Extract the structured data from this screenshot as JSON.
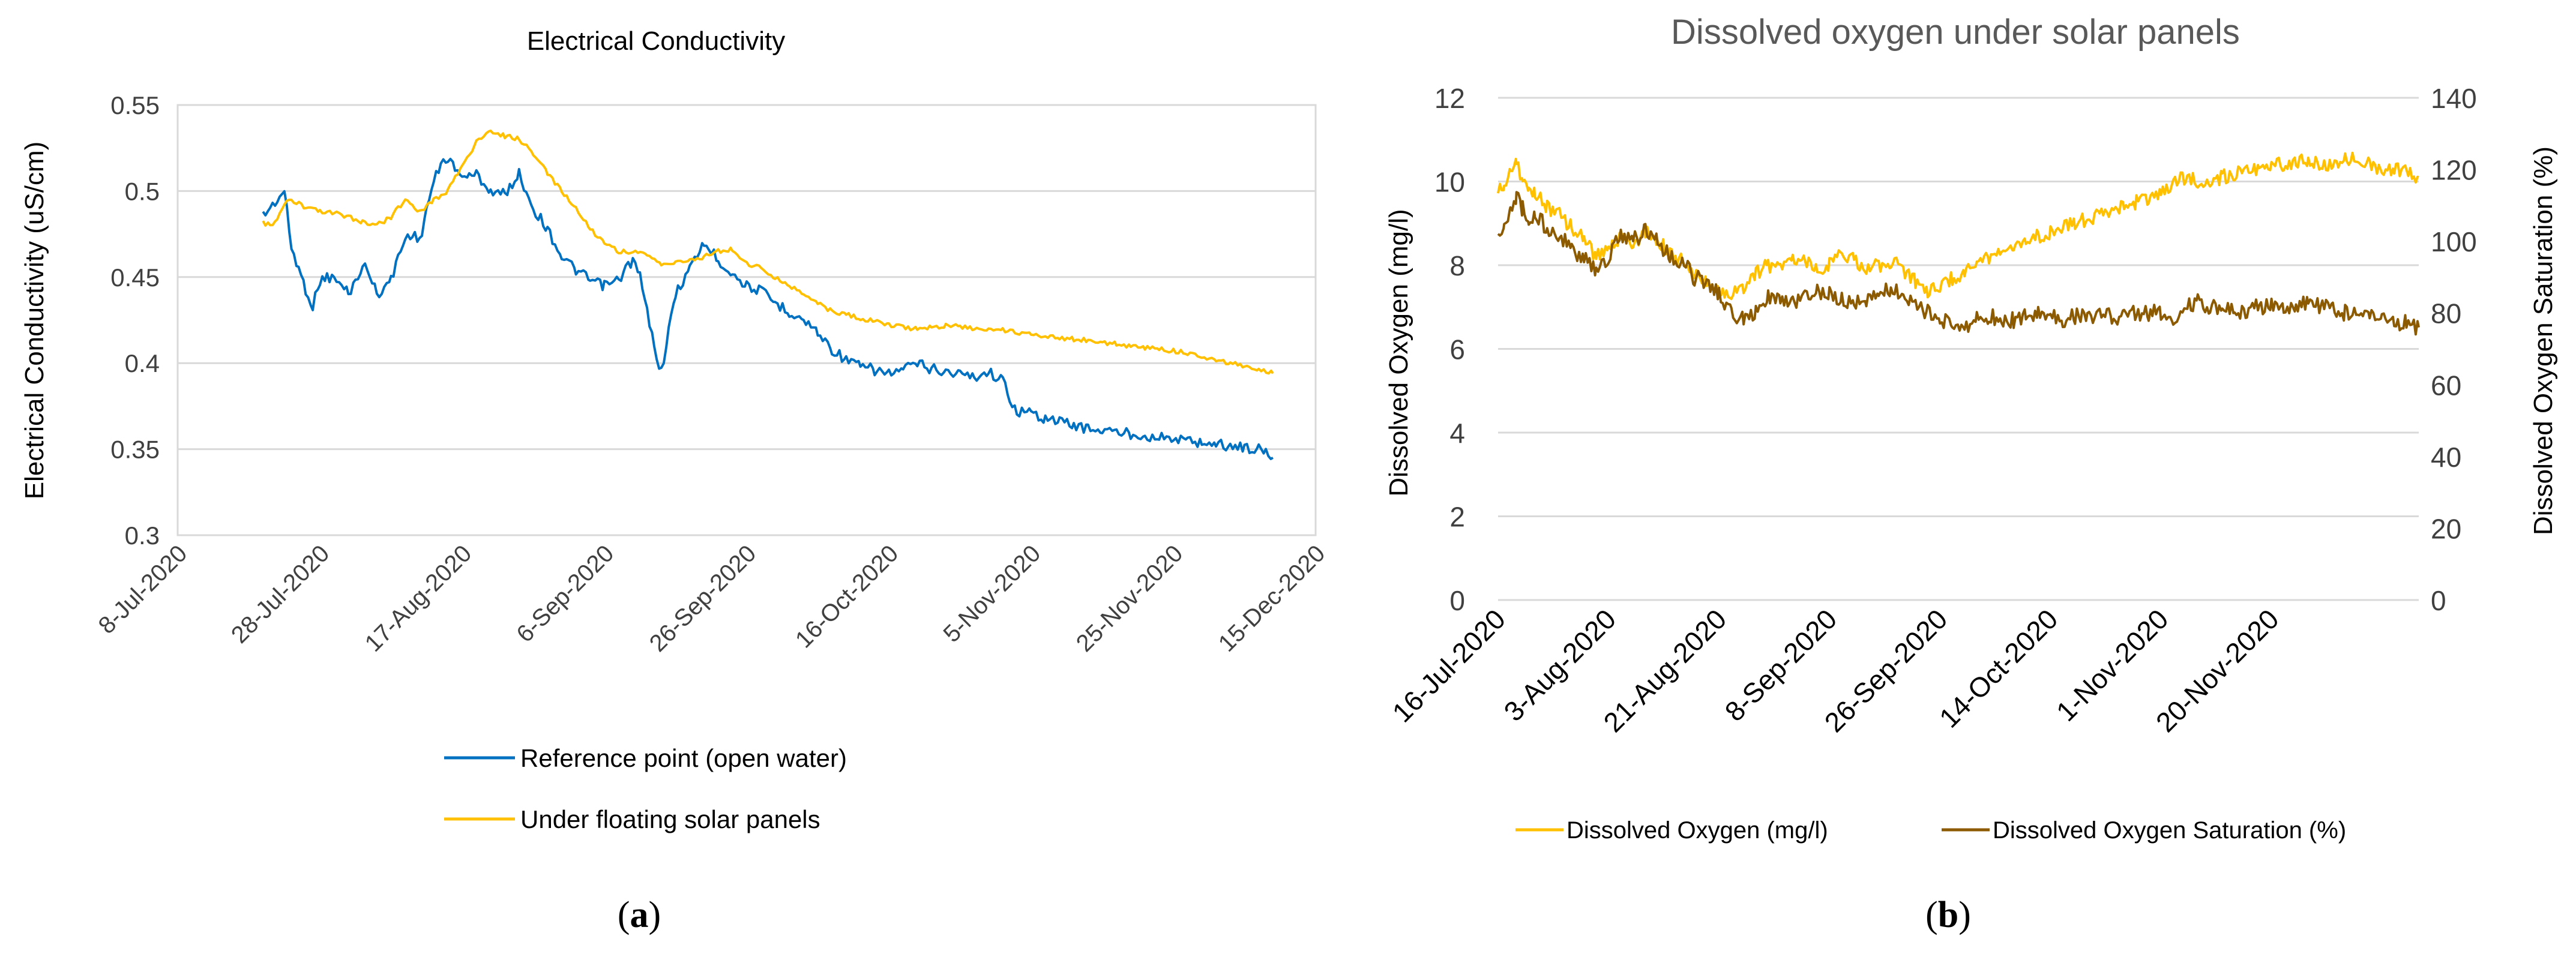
{
  "colors": {
    "blue": "#0070C0",
    "gold": "#FFC000",
    "brown": "#8C5A00",
    "grid": "#D9D9D9",
    "text": "#404040",
    "axis": "#595959"
  },
  "panels": [
    {
      "label_open": "(",
      "label_letter": "a",
      "label_close": ")"
    },
    {
      "label_open": "(",
      "label_letter": "b",
      "label_close": ")"
    }
  ],
  "chart_data": [
    {
      "type": "line",
      "title": "Electrical Conductivity",
      "ylabel": "Electrical Conductivity  (uS/cm)",
      "xlabel": "",
      "ylim": [
        0.3,
        0.55
      ],
      "yticks": [
        "0.3",
        "0.35",
        "0.4",
        "0.45",
        "0.5",
        "0.55"
      ],
      "xlim_days": [
        0,
        160
      ],
      "xticks": [
        "8-Jul-2020",
        "28-Jul-2020",
        "17-Aug-2020",
        "6-Sep-2020",
        "26-Sep-2020",
        "16-Oct-2020",
        "5-Nov-2020",
        "25-Nov-2020",
        "15-Dec-2020"
      ],
      "x_unit": "days since 8-Jul-2020",
      "legend_position": "bottom",
      "series": [
        {
          "name": "Reference point (open water)",
          "color": "#0070C0",
          "x": [
            12,
            13,
            14,
            15,
            16,
            17,
            18,
            19,
            20,
            21,
            22,
            24,
            25,
            26,
            27,
            28,
            30,
            31,
            32,
            33,
            34,
            35,
            36,
            37,
            38,
            39,
            40,
            41,
            42,
            44,
            46,
            48,
            49,
            50,
            52,
            54,
            56,
            58,
            60,
            62,
            63,
            64,
            65,
            66,
            67,
            68,
            70,
            72,
            74,
            76,
            78,
            80,
            82,
            84,
            86,
            88,
            90,
            92,
            94,
            96,
            98,
            100,
            102,
            104,
            105,
            106,
            108,
            110,
            112,
            114,
            116,
            117,
            118,
            120,
            122,
            124,
            126,
            128,
            130,
            132,
            134,
            136,
            138,
            140,
            142,
            144,
            146,
            148,
            150,
            152,
            153,
            154
          ],
          "y": [
            0.486,
            0.49,
            0.495,
            0.5,
            0.467,
            0.455,
            0.443,
            0.433,
            0.448,
            0.45,
            0.449,
            0.441,
            0.447,
            0.457,
            0.452,
            0.44,
            0.448,
            0.462,
            0.472,
            0.476,
            0.47,
            0.49,
            0.505,
            0.515,
            0.52,
            0.512,
            0.51,
            0.508,
            0.51,
            0.5,
            0.498,
            0.51,
            0.5,
            0.49,
            0.478,
            0.462,
            0.454,
            0.448,
            0.445,
            0.448,
            0.455,
            0.46,
            0.45,
            0.43,
            0.41,
            0.395,
            0.44,
            0.455,
            0.47,
            0.46,
            0.452,
            0.445,
            0.442,
            0.435,
            0.43,
            0.425,
            0.418,
            0.408,
            0.402,
            0.398,
            0.396,
            0.394,
            0.396,
            0.4,
            0.398,
            0.397,
            0.395,
            0.394,
            0.392,
            0.395,
            0.39,
            0.38,
            0.372,
            0.371,
            0.368,
            0.366,
            0.364,
            0.362,
            0.361,
            0.36,
            0.359,
            0.358,
            0.357,
            0.356,
            0.355,
            0.354,
            0.353,
            0.352,
            0.351,
            0.35,
            0.348,
            0.345
          ]
        },
        {
          "name": "Under floating solar panels",
          "color": "#FFC000",
          "x": [
            12,
            13,
            14,
            15,
            16,
            18,
            20,
            22,
            24,
            26,
            28,
            30,
            31,
            32,
            33,
            34,
            36,
            38,
            40,
            42,
            44,
            46,
            48,
            50,
            52,
            54,
            56,
            58,
            60,
            62,
            64,
            66,
            68,
            70,
            72,
            74,
            76,
            78,
            80,
            82,
            84,
            86,
            88,
            90,
            92,
            94,
            96,
            98,
            100,
            102,
            104,
            106,
            108,
            110,
            112,
            114,
            116,
            118,
            120,
            122,
            124,
            126,
            128,
            130,
            132,
            134,
            136,
            138,
            140,
            142,
            144,
            146,
            148,
            150,
            152,
            154
          ],
          "y": [
            0.482,
            0.48,
            0.483,
            0.492,
            0.495,
            0.49,
            0.488,
            0.487,
            0.485,
            0.482,
            0.48,
            0.485,
            0.49,
            0.495,
            0.492,
            0.488,
            0.495,
            0.5,
            0.515,
            0.528,
            0.535,
            0.532,
            0.53,
            0.522,
            0.51,
            0.5,
            0.49,
            0.478,
            0.47,
            0.465,
            0.465,
            0.462,
            0.458,
            0.458,
            0.46,
            0.462,
            0.465,
            0.466,
            0.458,
            0.455,
            0.45,
            0.445,
            0.44,
            0.435,
            0.43,
            0.428,
            0.426,
            0.424,
            0.422,
            0.421,
            0.42,
            0.421,
            0.422,
            0.421,
            0.42,
            0.42,
            0.419,
            0.418,
            0.417,
            0.416,
            0.415,
            0.414,
            0.413,
            0.412,
            0.411,
            0.41,
            0.409,
            0.408,
            0.407,
            0.406,
            0.404,
            0.402,
            0.4,
            0.398,
            0.396,
            0.394
          ]
        }
      ]
    },
    {
      "type": "line",
      "title": "Dissolved oxygen under solar panels",
      "ylabel": "Dissolved Oxygen (mg/l)",
      "y2label": "Dissolved Oxygen Saturation (%)",
      "ylim": [
        0,
        12
      ],
      "y2lim": [
        0,
        140
      ],
      "yticks": [
        "0",
        "2",
        "4",
        "6",
        "8",
        "10",
        "12"
      ],
      "y2ticks": [
        "0",
        "20",
        "40",
        "60",
        "80",
        "100",
        "120",
        "140"
      ],
      "xlim_days": [
        0,
        150
      ],
      "xticks": [
        "16-Jul-2020",
        "3-Aug-2020",
        "21-Aug-2020",
        "8-Sep-2020",
        "26-Sep-2020",
        "14-Oct-2020",
        "1-Nov-2020",
        "20-Nov-2020"
      ],
      "x_unit": "days since 16-Jul-2020",
      "legend_position": "bottom",
      "series": [
        {
          "name": "Dissolved Oxygen (mg/l)",
          "color": "#FFC000",
          "axis": "left",
          "x": [
            0,
            1,
            2,
            3,
            4,
            5,
            6,
            8,
            10,
            12,
            14,
            16,
            18,
            20,
            22,
            24,
            26,
            28,
            30,
            32,
            34,
            36,
            38,
            40,
            42,
            44,
            46,
            48,
            50,
            52,
            54,
            56,
            58,
            60,
            62,
            64,
            66,
            68,
            70,
            72,
            74,
            76,
            78,
            80,
            82,
            84,
            86,
            88,
            90,
            92,
            94,
            96,
            98,
            100,
            102,
            104,
            106,
            108,
            110,
            112,
            114,
            116,
            118,
            120,
            122,
            124,
            126,
            128,
            130,
            132,
            134,
            136,
            138,
            140,
            142,
            144,
            146,
            148,
            150
          ],
          "y": [
            9.8,
            9.9,
            10.2,
            10.5,
            10.0,
            9.8,
            9.7,
            9.4,
            9.2,
            8.9,
            8.6,
            8.2,
            8.4,
            8.7,
            8.5,
            8.8,
            8.6,
            8.3,
            8.1,
            7.8,
            7.6,
            7.4,
            7.3,
            7.5,
            7.8,
            8.0,
            7.9,
            8.2,
            8.1,
            7.9,
            8.0,
            8.3,
            8.1,
            7.9,
            8.0,
            8.1,
            7.9,
            7.6,
            7.4,
            7.5,
            7.7,
            7.8,
            8.0,
            8.2,
            8.3,
            8.5,
            8.6,
            8.7,
            8.8,
            8.9,
            9.0,
            9.1,
            9.2,
            9.3,
            9.4,
            9.5,
            9.6,
            9.7,
            10.0,
            10.1,
            10.0,
            10.0,
            10.1,
            10.2,
            10.3,
            10.3,
            10.4,
            10.4,
            10.5,
            10.5,
            10.4,
            10.4,
            10.5,
            10.6,
            10.4,
            10.3,
            10.3,
            10.2,
            10.1
          ]
        },
        {
          "name": "Dissolved Oxygen Saturation (%)",
          "color": "#8C5A00",
          "axis": "right",
          "x": [
            0,
            1,
            2,
            3,
            4,
            5,
            6,
            8,
            10,
            12,
            14,
            16,
            18,
            20,
            22,
            24,
            26,
            28,
            30,
            32,
            34,
            36,
            38,
            40,
            42,
            44,
            46,
            48,
            50,
            52,
            54,
            56,
            58,
            60,
            62,
            64,
            66,
            68,
            70,
            72,
            74,
            76,
            78,
            80,
            82,
            84,
            86,
            88,
            90,
            92,
            94,
            96,
            98,
            100,
            102,
            104,
            106,
            108,
            110,
            112,
            114,
            116,
            118,
            120,
            122,
            124,
            126,
            128,
            130,
            132,
            134,
            136,
            138,
            140,
            142,
            144,
            146,
            148,
            150
          ],
          "y": [
            103,
            104,
            108,
            112,
            109,
            106,
            107,
            104,
            102,
            98,
            95,
            92,
            96,
            102,
            100,
            103,
            100,
            96,
            94,
            90,
            88,
            85,
            80,
            78,
            80,
            84,
            85,
            83,
            84,
            86,
            85,
            84,
            83,
            84,
            85,
            87,
            84,
            82,
            80,
            78,
            77,
            76,
            78,
            79,
            78,
            78,
            79,
            80,
            79,
            78,
            79,
            79,
            80,
            79,
            79,
            80,
            80,
            80,
            79,
            82,
            83,
            82,
            81,
            80,
            81,
            82,
            82,
            81,
            82,
            83,
            82,
            81,
            80,
            80,
            79,
            79,
            78,
            77,
            76
          ]
        }
      ]
    }
  ]
}
